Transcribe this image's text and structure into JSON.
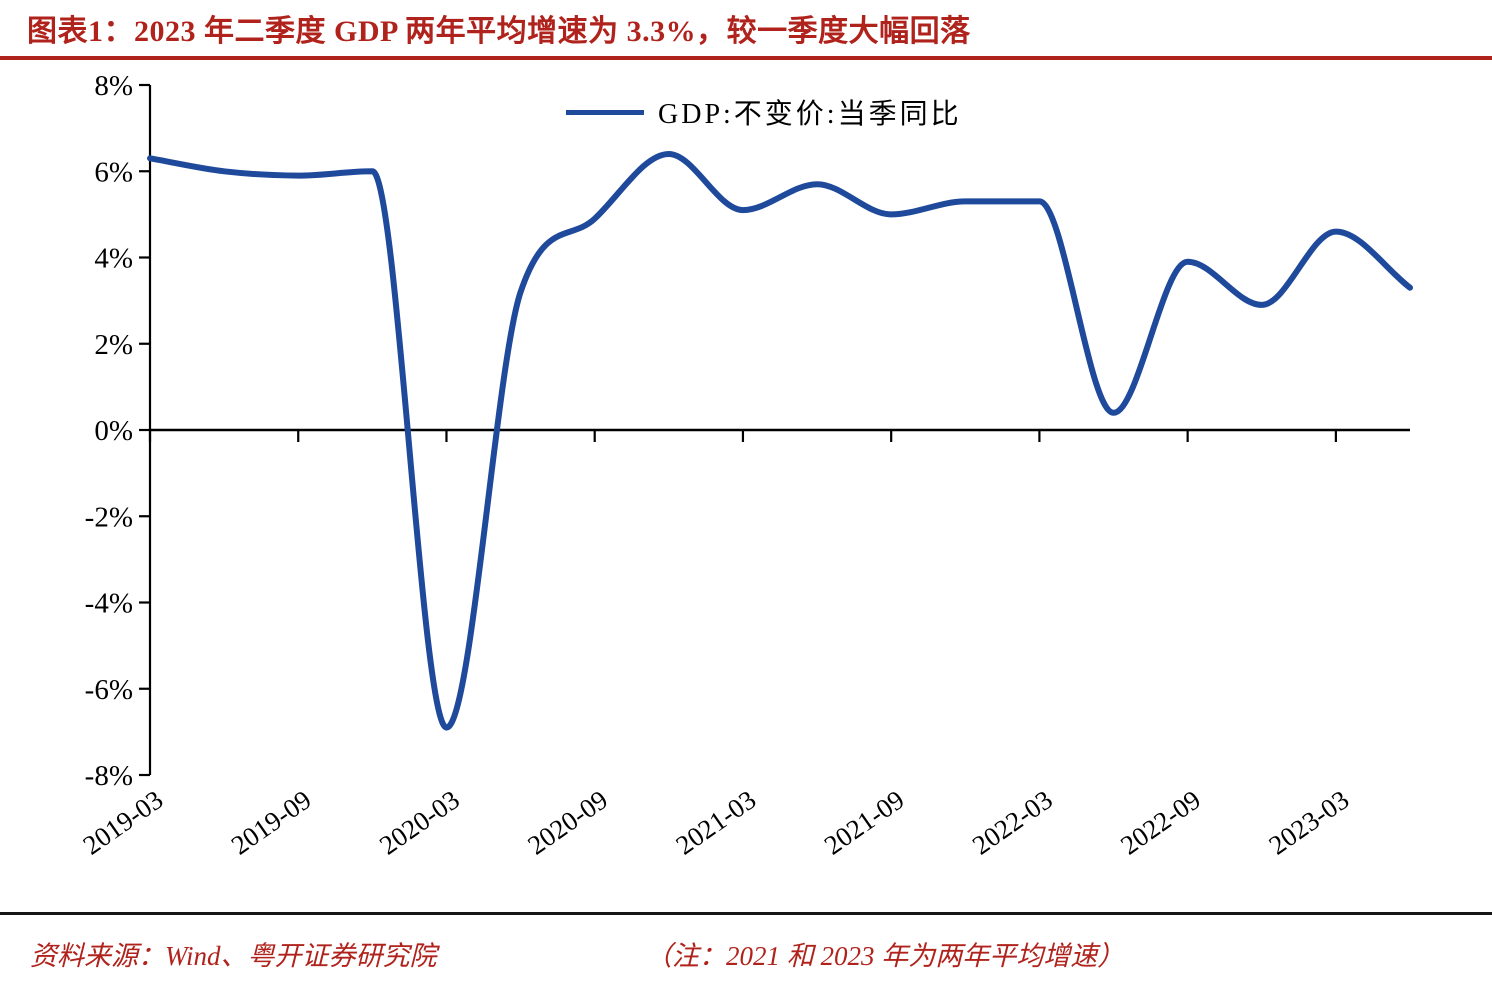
{
  "title": "图表1：2023 年二季度 GDP 两年平均增速为 3.3%，较一季度大幅回落",
  "colors": {
    "accent_red": "#b0231c",
    "line_blue": "#1f4a9c",
    "axis_black": "#000000"
  },
  "legend": {
    "label": "GDP:不变价:当季同比"
  },
  "footer": {
    "source": "资料来源：Wind、粤开证券研究院",
    "note": "（注：2021 和 2023 年为两年平均增速）"
  },
  "chart_data": {
    "type": "line",
    "title": "图表1：2023 年二季度 GDP 两年平均增速为 3.3%，较一季度大幅回落",
    "x": [
      "2019-03",
      "2019-06",
      "2019-09",
      "2019-12",
      "2020-03",
      "2020-06",
      "2020-09",
      "2020-12",
      "2021-03",
      "2021-06",
      "2021-09",
      "2021-12",
      "2022-03",
      "2022-06",
      "2022-09",
      "2022-12",
      "2023-03",
      "2023-06"
    ],
    "series": [
      {
        "name": "GDP:不变价:当季同比",
        "color": "#1f4a9c",
        "values": [
          6.3,
          6.0,
          5.9,
          6.0,
          -6.9,
          3.2,
          4.9,
          6.4,
          5.1,
          5.7,
          5.0,
          5.3,
          5.3,
          0.4,
          3.9,
          2.9,
          4.6,
          3.3
        ]
      }
    ],
    "ylim": [
      -8,
      8
    ],
    "y_ticks": [
      {
        "value": 8,
        "label": "8%"
      },
      {
        "value": 6,
        "label": "6%"
      },
      {
        "value": 4,
        "label": "4%"
      },
      {
        "value": 2,
        "label": "2%"
      },
      {
        "value": 0,
        "label": "0%"
      },
      {
        "value": -2,
        "label": "-2%"
      },
      {
        "value": -4,
        "label": "-4%"
      },
      {
        "value": -6,
        "label": "-6%"
      },
      {
        "value": -8,
        "label": "-8%"
      }
    ],
    "x_tick_labels": [
      "2019-03",
      "2019-09",
      "2020-03",
      "2020-09",
      "2021-03",
      "2021-09",
      "2022-03",
      "2022-09",
      "2023-03"
    ],
    "grid": false,
    "legend_position": "top-center",
    "xlabel": "",
    "ylabel": ""
  }
}
